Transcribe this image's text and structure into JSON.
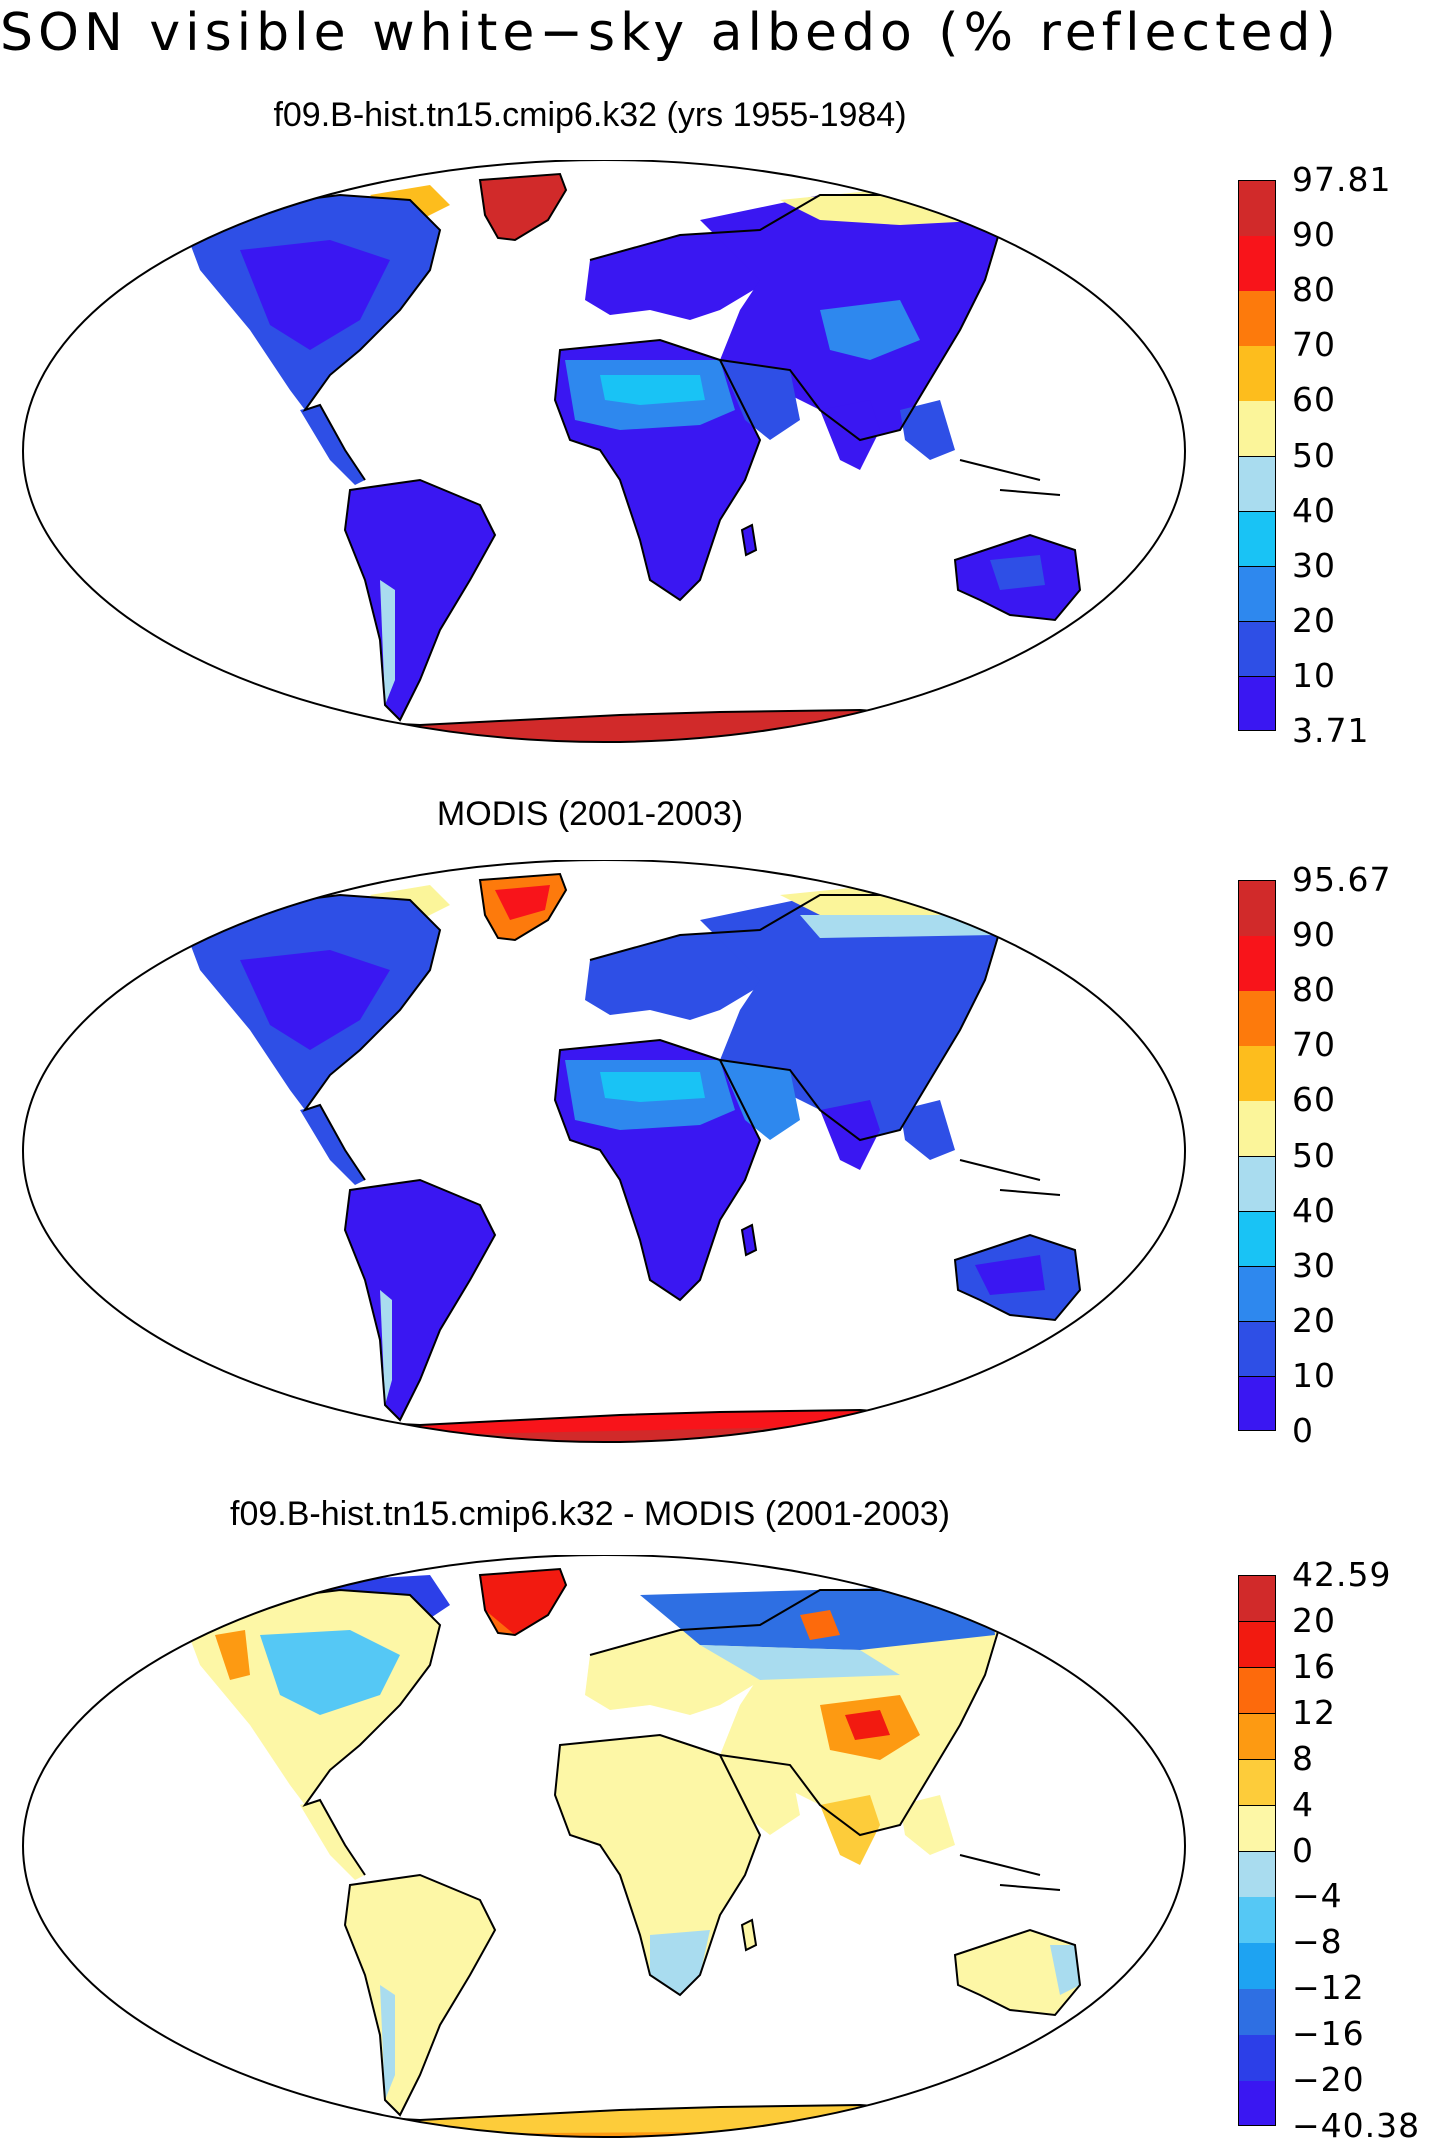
{
  "title": "SON visible white−sky albedo (% reflected)",
  "panels": [
    {
      "id": "model",
      "title": "f09.B-hist.tn15.cmip6.k32 (yrs 1955-1984)",
      "colors": [
        "#3a17f2",
        "#2e4fe6",
        "#2e88ee",
        "#19c3f5",
        "#a9dcef",
        "#fbf59a",
        "#fdbd1d",
        "#fd7a0c",
        "#f8141a",
        "#d12a2a"
      ],
      "labels": [
        "3.71",
        "10",
        "20",
        "30",
        "40",
        "50",
        "60",
        "70",
        "80",
        "90",
        "97.81"
      ]
    },
    {
      "id": "obs",
      "title": "MODIS (2001-2003)",
      "colors": [
        "#3a17f2",
        "#2e4fe6",
        "#2e88ee",
        "#19c3f5",
        "#a9dcef",
        "#fbf59a",
        "#fdbd1d",
        "#fd7a0c",
        "#f8141a",
        "#d12a2a"
      ],
      "labels": [
        "0",
        "10",
        "20",
        "30",
        "40",
        "50",
        "60",
        "70",
        "80",
        "90",
        "95.67"
      ]
    },
    {
      "id": "diff",
      "title": "f09.B-hist.tn15.cmip6.k32 - MODIS (2001-2003)",
      "colors": [
        "#3a17f2",
        "#2c3fe8",
        "#2e6fe3",
        "#1ea3f2",
        "#55c8f5",
        "#a9dcef",
        "#fdf7a6",
        "#fdcc3a",
        "#fd9a12",
        "#fd6a0c",
        "#f21a10",
        "#d12a2a"
      ],
      "labels": [
        "−40.38",
        "−20",
        "−16",
        "−12",
        "−8",
        "−4",
        "0",
        "4",
        "8",
        "12",
        "16",
        "20",
        "42.59"
      ]
    }
  ]
}
